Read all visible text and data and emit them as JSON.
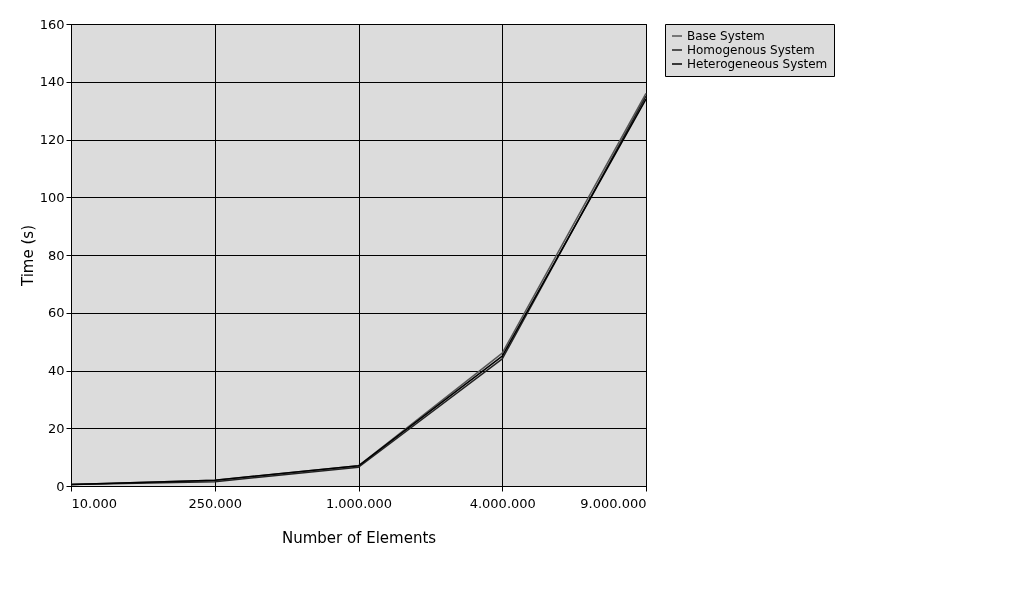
{
  "chart_data": {
    "type": "line",
    "xlabel": "Number of Elements",
    "ylabel": "Time (s)",
    "categories": [
      "10.000",
      "250.000",
      "1.000.000",
      "4.000.000",
      "9.000.000"
    ],
    "series": [
      {
        "name": "Base System",
        "color": "#555555",
        "values": [
          0.5,
          2,
          7,
          46,
          136
        ]
      },
      {
        "name": "Homogenous System",
        "color": "#222222",
        "values": [
          0.5,
          1.5,
          6.5,
          44,
          135
        ]
      },
      {
        "name": "Heterogeneous System",
        "color": "#000000",
        "values": [
          0.5,
          2,
          7,
          45,
          134
        ]
      }
    ],
    "ylim": [
      0,
      160
    ],
    "yticks": [
      0,
      20,
      40,
      60,
      80,
      100,
      120,
      140,
      160
    ],
    "grid": true,
    "legend": "right",
    "line_style": "solid"
  }
}
